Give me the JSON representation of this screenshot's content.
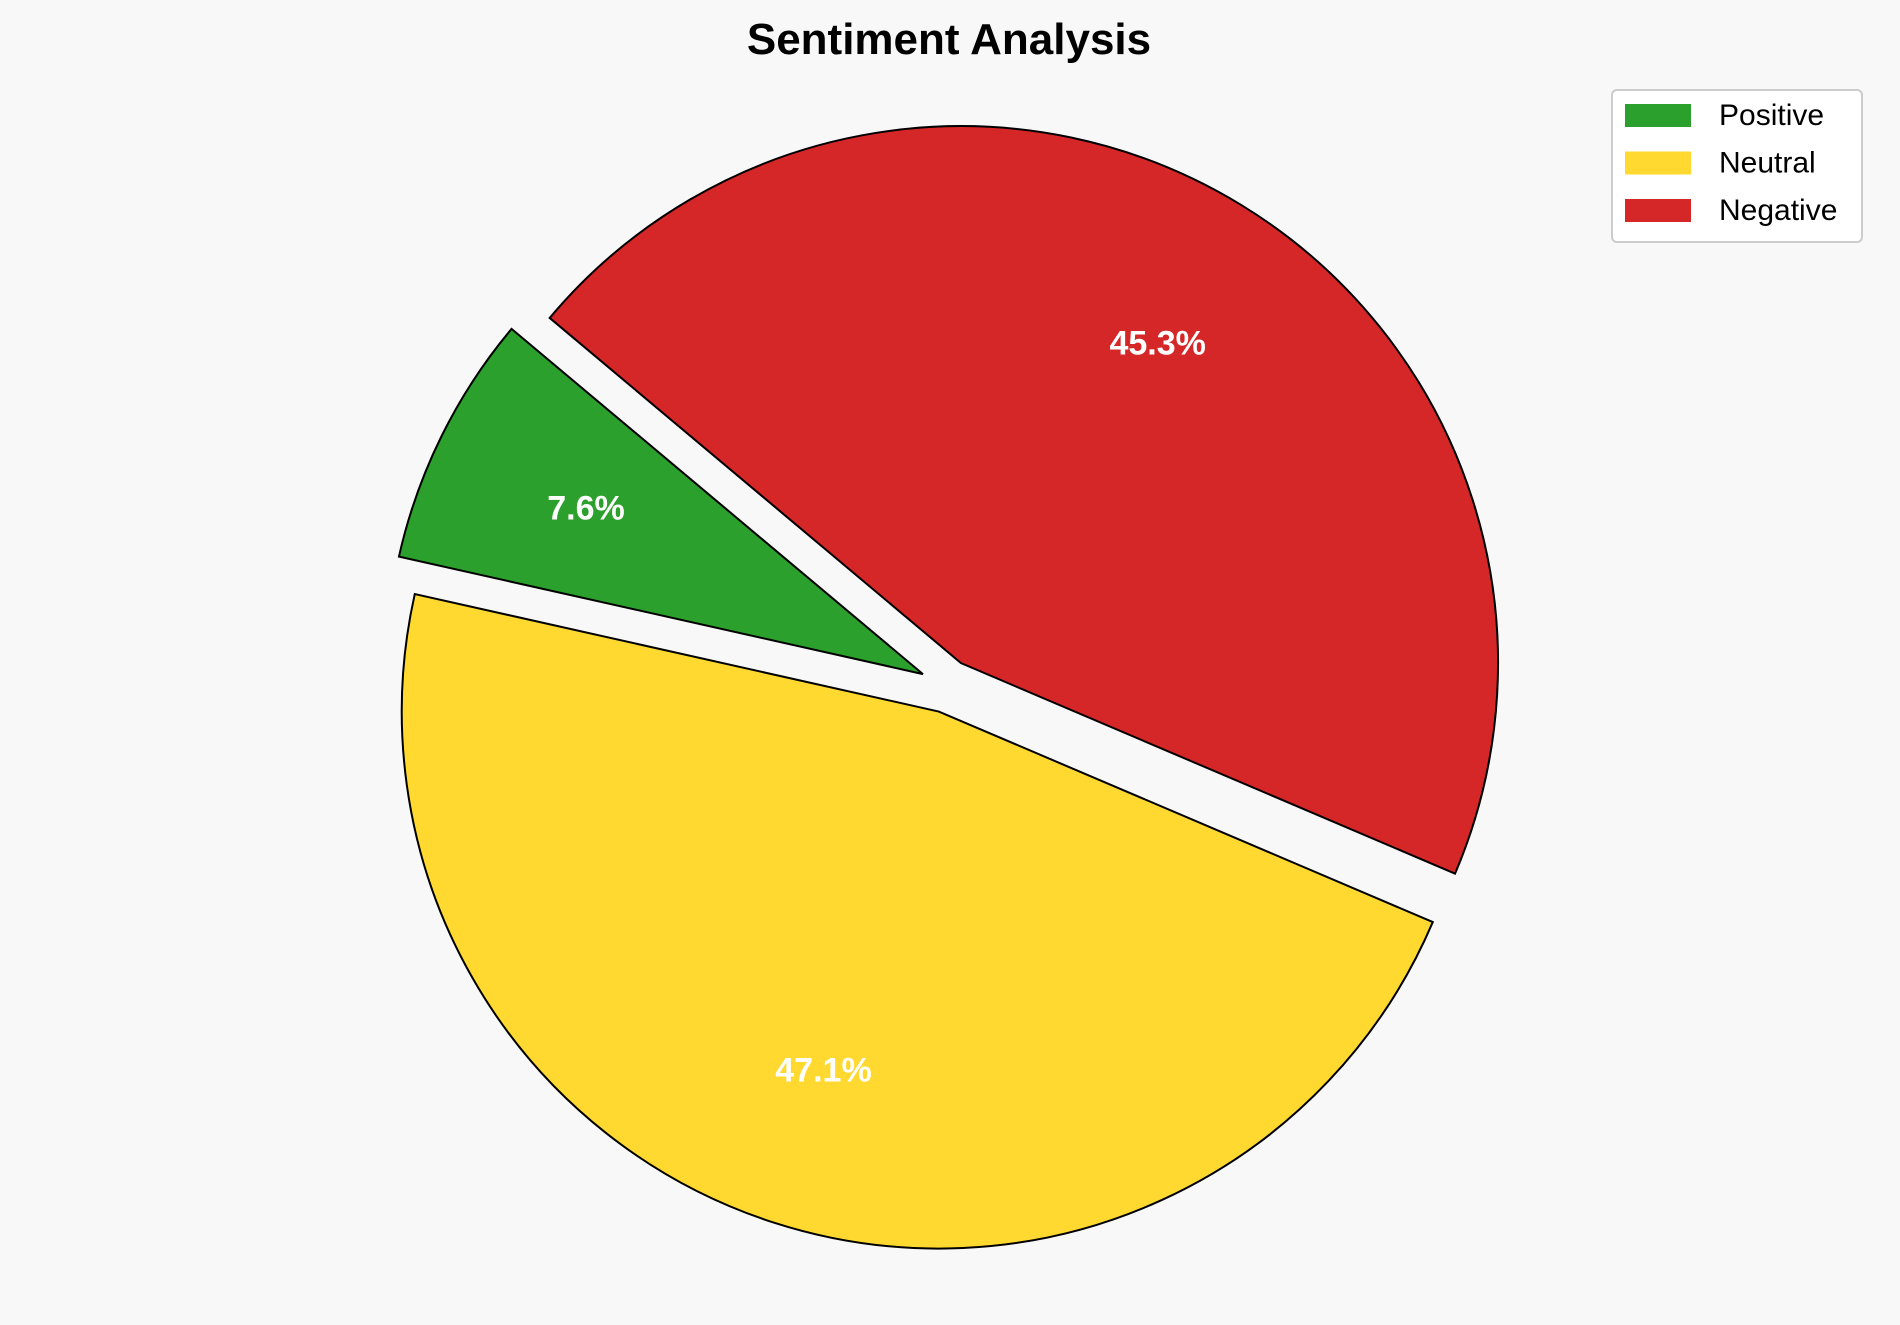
{
  "chart_data": {
    "type": "pie",
    "title": "Sentiment Analysis",
    "categories": [
      "Positive",
      "Neutral",
      "Negative"
    ],
    "values": [
      7.6,
      47.1,
      45.3
    ],
    "labels": [
      "7.6%",
      "47.1%",
      "45.3%"
    ],
    "colors": [
      "#2ca02c",
      "#ffd92f",
      "#d62728"
    ],
    "start_angle_deg": 140,
    "direction": "counterclockwise",
    "explode": [
      0.05,
      0.05,
      0.05
    ],
    "legend_position": "top-right"
  }
}
